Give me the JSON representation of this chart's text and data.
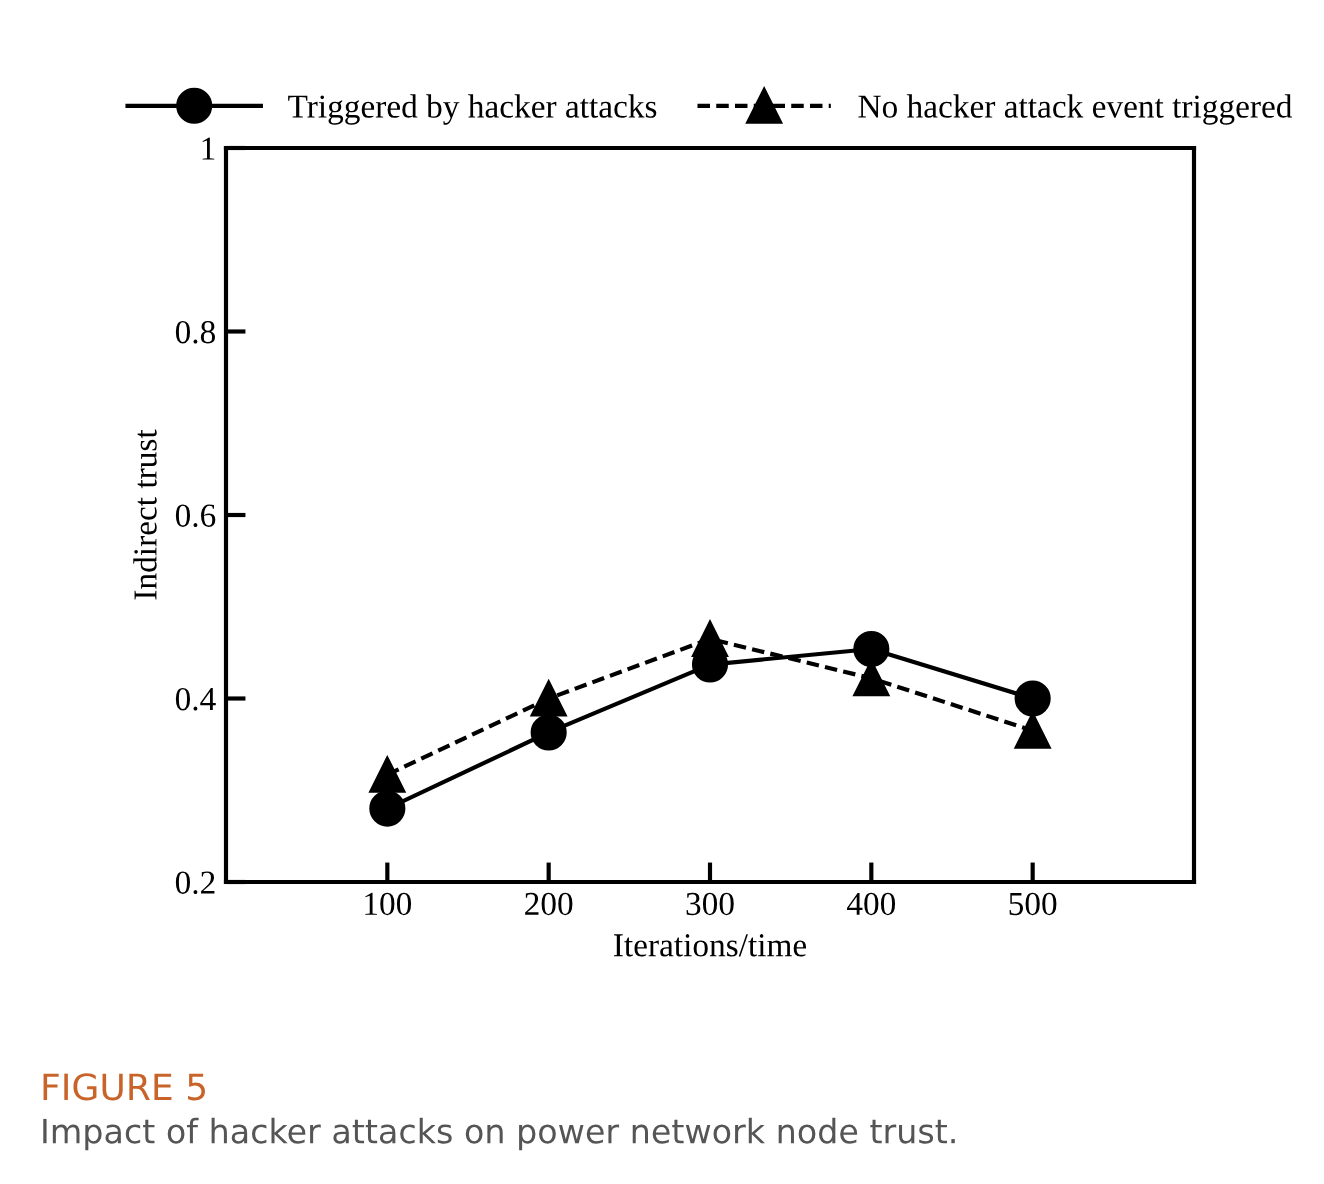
{
  "chart_data": {
    "type": "line",
    "title": "FIGURE 5",
    "subtitle": "Impact of hacker attacks on power network node trust.",
    "xlabel": "Iterations/time",
    "ylabel": "Indirect trust",
    "x": [
      100,
      200,
      300,
      400,
      500
    ],
    "series": [
      {
        "name": "Triggered by hacker attacks",
        "color": "#000000",
        "marker": "circle",
        "line_style": "solid",
        "values": [
          0.28,
          0.363,
          0.437,
          0.454,
          0.4
        ]
      },
      {
        "name": "No hacker attack event triggered",
        "color": "#000000",
        "marker": "triangle",
        "line_style": "dashed",
        "values": [
          0.317,
          0.4,
          0.465,
          0.422,
          0.365
        ]
      }
    ],
    "xlim": [
      0,
      600
    ],
    "xticks": [
      100,
      200,
      300,
      400,
      500
    ],
    "ylim": [
      0.2,
      1
    ],
    "yticks": [
      {
        "value": 0.2,
        "label": "0.2"
      },
      {
        "value": 0.4,
        "label": "0.4"
      },
      {
        "value": 0.6,
        "label": "0.6"
      },
      {
        "value": 0.8,
        "label": "0.8"
      },
      {
        "value": 1,
        "label": "1"
      }
    ],
    "grid": false,
    "legend": "top"
  }
}
